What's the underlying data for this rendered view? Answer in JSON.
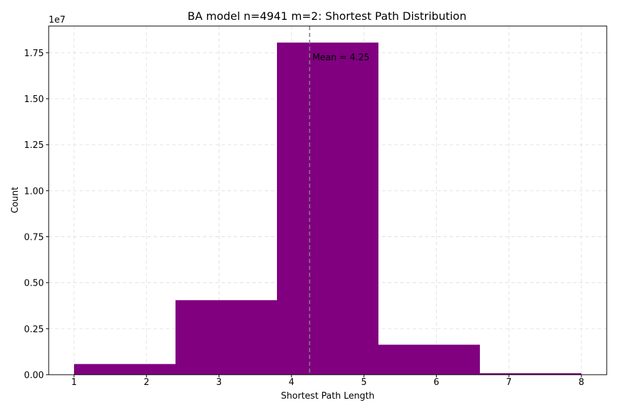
{
  "chart_data": {
    "type": "bar",
    "title": "BA model n=4941 m=2: Shortest Path Distribution",
    "xlabel": "Shortest Path Length",
    "ylabel": "Count",
    "y_offset_label": "1e7",
    "y_scale_factor": 10000000,
    "xlim": [
      0.65,
      8.35
    ],
    "ylim": [
      0,
      18950000
    ],
    "xticks": [
      1,
      2,
      3,
      4,
      5,
      6,
      7,
      8
    ],
    "yticks": [
      0,
      0.25,
      0.5,
      0.75,
      1.0,
      1.25,
      1.5,
      1.75
    ],
    "ytick_labels": [
      "0.00",
      "0.25",
      "0.50",
      "0.75",
      "1.00",
      "1.25",
      "1.50",
      "1.75"
    ],
    "bins": [
      {
        "x0": 1.0,
        "x1": 2.4,
        "value": 580000
      },
      {
        "x0": 2.4,
        "x1": 3.8,
        "value": 4050000
      },
      {
        "x0": 3.8,
        "x1": 5.2,
        "value": 18050000
      },
      {
        "x0": 5.2,
        "x1": 6.6,
        "value": 1630000
      },
      {
        "x0": 6.6,
        "x1": 8.0,
        "value": 80000
      }
    ],
    "bar_color": "#800080",
    "mean": 4.25,
    "mean_label": "Mean = 4.25",
    "mean_line_color": "#808080",
    "grid": true
  }
}
